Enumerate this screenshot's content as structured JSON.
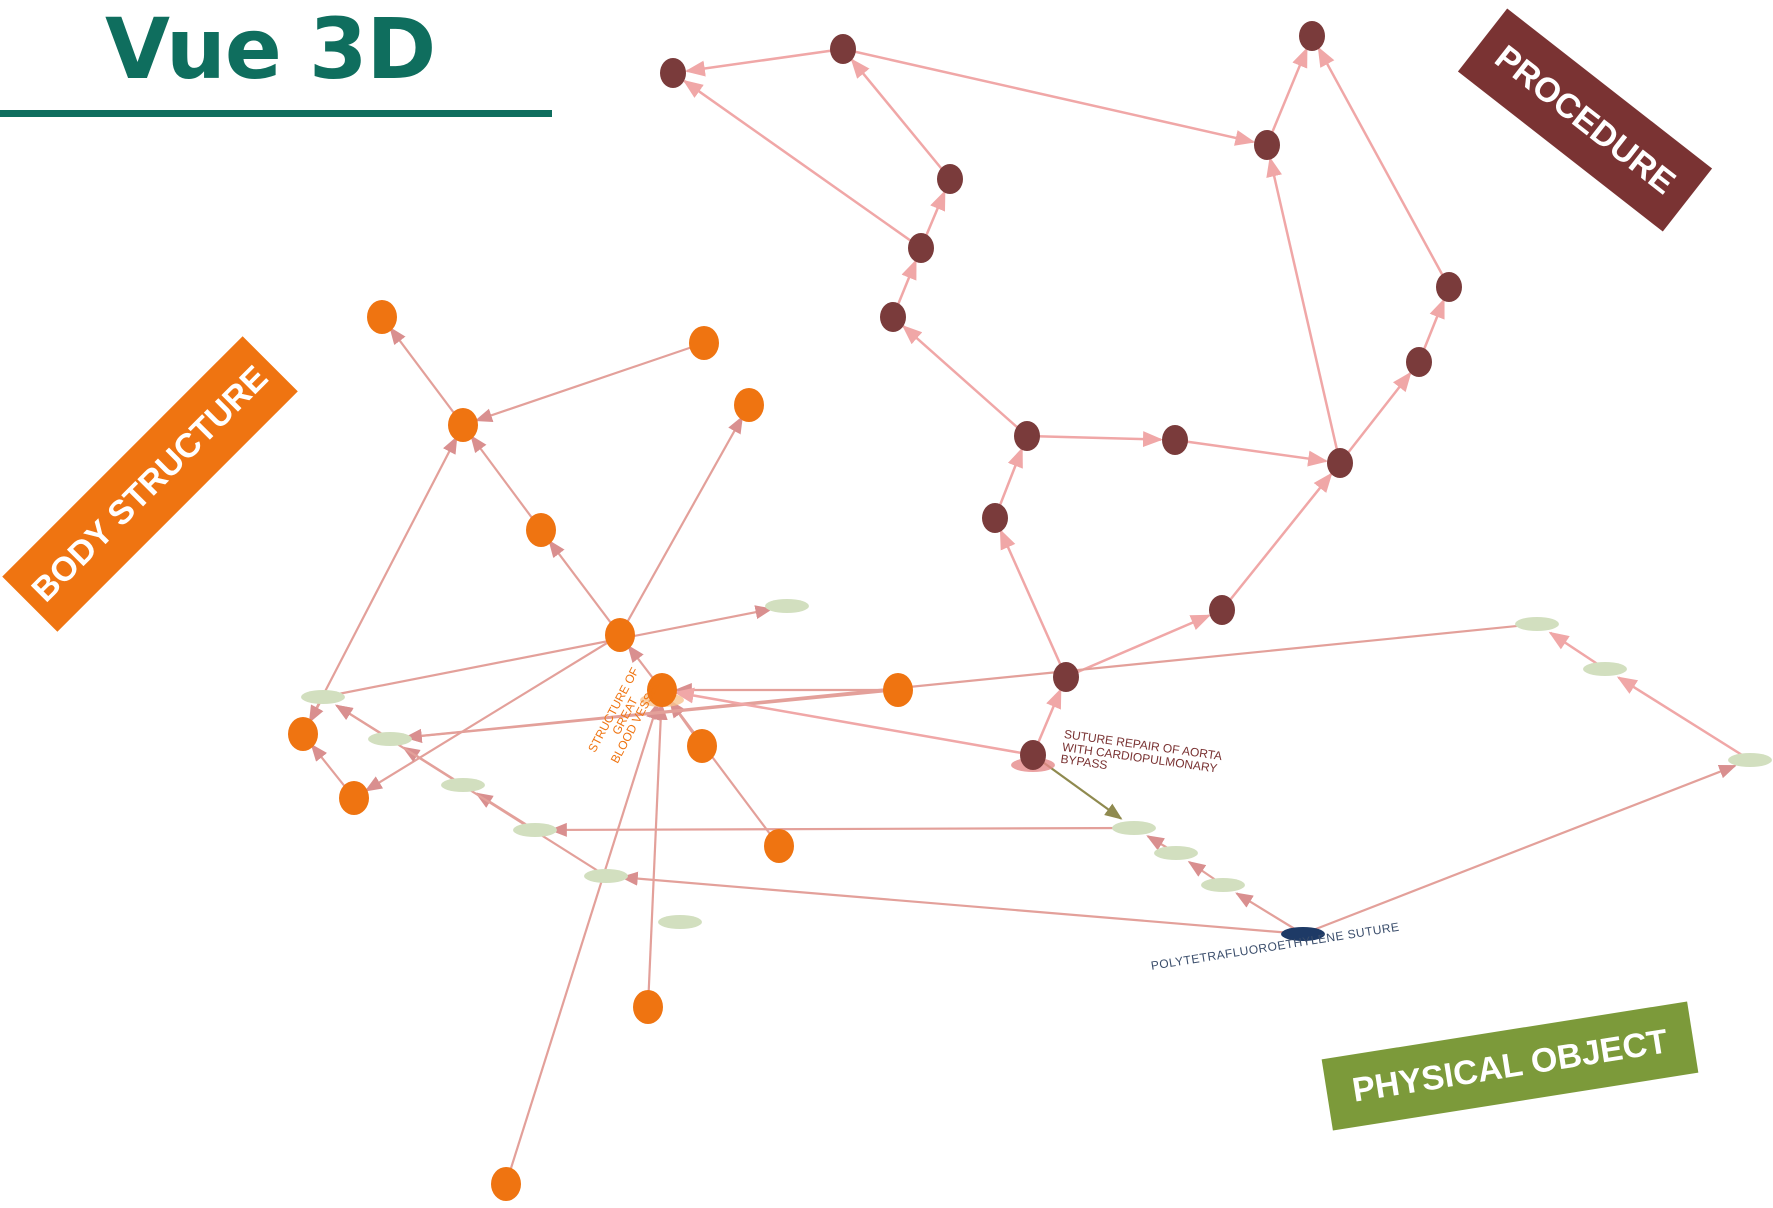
{
  "title": "Vue 3D",
  "categories": {
    "procedure": "PROCEDURE",
    "body_structure": "BODY STRUCTURE",
    "physical_object": "PHYSICAL OBJECT"
  },
  "labels": {
    "suture_repair": "SUTURE REPAIR OF AORTA\nWITH CARDIOPULMONARY\nBYPASS",
    "great_vessel": "STRUCTURE OF GREAT\nBLOOD VESSEL",
    "ptfe_suture": "POLYTETRAFLUOROETHYLENE SUTURE"
  },
  "colors": {
    "title": "#0f6e5e",
    "procedure_node": "#7a3b3b",
    "body_node": "#ef7411",
    "physical_node": "#d2dfbf",
    "focus_node": "#1e3a66",
    "edge": "#f0a7a7",
    "edge_dark": "#e3a09a",
    "link_edge": "#8f8a4f"
  }
}
